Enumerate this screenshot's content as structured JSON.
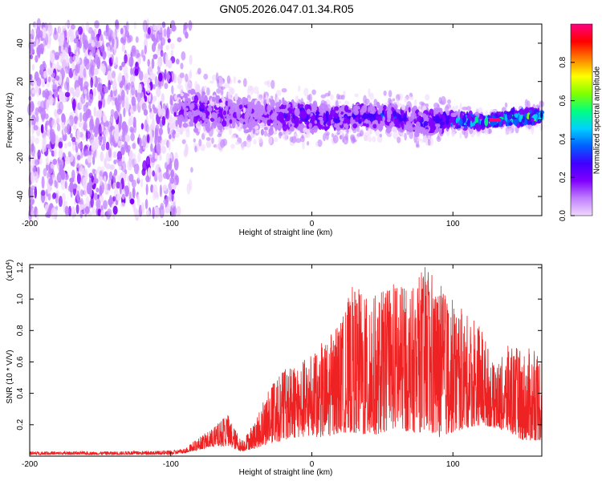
{
  "title": "GN05.2026.047.01.34.R05",
  "chart_data": [
    {
      "type": "heatmap",
      "name": "spectrogram",
      "xlabel": "Height of straight line (km)",
      "ylabel": "Frequency (Hz)",
      "xlim": [
        -200,
        163
      ],
      "ylim": [
        -50,
        50
      ],
      "xticks": [
        -200,
        -100,
        0,
        100
      ],
      "xtick_labels": [
        "-200",
        "-100",
        "0",
        "100"
      ],
      "yticks": [
        -40,
        -20,
        0,
        20,
        40
      ],
      "ytick_labels": [
        "-40",
        "-20",
        "0",
        "20",
        "40"
      ],
      "colorbar": {
        "label": "Normalized spectral amplitude",
        "range": [
          0,
          1
        ],
        "ticks": [
          0.0,
          0.2,
          0.4,
          0.6,
          0.8
        ],
        "tick_labels": [
          "0.0",
          "0.2",
          "0.4",
          "0.6",
          "0.8"
        ],
        "colormap": [
          "#f0d8ff",
          "#c080ff",
          "#8000ff",
          "#4000ff",
          "#0060ff",
          "#00d0ff",
          "#00ff80",
          "#80ff00",
          "#ffff00",
          "#ff8000",
          "#ff0000",
          "#ff0080"
        ]
      },
      "noise_region": {
        "x_range": [
          -200,
          -97
        ],
        "freq_range": [
          -50,
          50
        ],
        "amplitude": 0.12
      },
      "band_segments": [
        {
          "x": -95,
          "center": 5,
          "halfwidth": 10,
          "amplitude": 0.18
        },
        {
          "x": -80,
          "center": 5,
          "halfwidth": 12,
          "amplitude": 0.2
        },
        {
          "x": -60,
          "center": 3,
          "halfwidth": 11,
          "amplitude": 0.18
        },
        {
          "x": -40,
          "center": 2,
          "halfwidth": 10,
          "amplitude": 0.17
        },
        {
          "x": -20,
          "center": 2,
          "halfwidth": 9,
          "amplitude": 0.22
        },
        {
          "x": 0,
          "center": 1,
          "halfwidth": 8,
          "amplitude": 0.25
        },
        {
          "x": 20,
          "center": 1,
          "halfwidth": 7,
          "amplitude": 0.24
        },
        {
          "x": 40,
          "center": 2,
          "halfwidth": 7,
          "amplitude": 0.26
        },
        {
          "x": 60,
          "center": 1,
          "halfwidth": 7,
          "amplitude": 0.25
        },
        {
          "x": 80,
          "center": -2,
          "halfwidth": 8,
          "amplitude": 0.22
        },
        {
          "x": 100,
          "center": 0,
          "halfwidth": 5,
          "amplitude": 0.35
        },
        {
          "x": 120,
          "center": -1,
          "halfwidth": 3,
          "amplitude": 0.5
        },
        {
          "x": 140,
          "center": 1,
          "halfwidth": 4,
          "amplitude": 0.45
        },
        {
          "x": 160,
          "center": 2,
          "halfwidth": 4,
          "amplitude": 0.5
        }
      ],
      "peak": {
        "x": 130,
        "frequency": 0,
        "amplitude": 0.95
      }
    },
    {
      "type": "line",
      "name": "snr",
      "xlabel": "Height of straight line (km)",
      "ylabel": "SNR (10 * V/V)",
      "y_multiplier": "(x10^4)",
      "multiplier_base": "(x10",
      "multiplier_exp": "4",
      "multiplier_close": ")",
      "xlim": [
        -200,
        163
      ],
      "ylim": [
        0,
        1.22
      ],
      "xticks": [
        -200,
        -100,
        0,
        100
      ],
      "xtick_labels": [
        "-200",
        "-100",
        "0",
        "100"
      ],
      "yticks": [
        0.2,
        0.4,
        0.6,
        0.8,
        1.0,
        1.2
      ],
      "ytick_labels": [
        "0.2",
        "0.4",
        "0.6",
        "0.8",
        "1.0",
        "1.2"
      ],
      "color": "#ee2222",
      "envelope": {
        "x": [
          -200,
          -150,
          -100,
          -90,
          -80,
          -70,
          -60,
          -50,
          -40,
          -30,
          -20,
          -10,
          0,
          10,
          20,
          30,
          40,
          50,
          60,
          70,
          80,
          90,
          100,
          110,
          120,
          130,
          140,
          150,
          163
        ],
        "max": [
          0.03,
          0.03,
          0.035,
          0.05,
          0.12,
          0.18,
          0.27,
          0.1,
          0.22,
          0.45,
          0.55,
          0.6,
          0.65,
          0.75,
          0.85,
          1.12,
          1.0,
          1.05,
          1.12,
          1.05,
          1.22,
          1.1,
          1.0,
          0.9,
          0.85,
          0.55,
          0.72,
          0.68,
          0.7
        ],
        "min": [
          0.01,
          0.01,
          0.01,
          0.02,
          0.04,
          0.06,
          0.06,
          0.03,
          0.05,
          0.08,
          0.1,
          0.12,
          0.12,
          0.12,
          0.15,
          0.15,
          0.12,
          0.15,
          0.18,
          0.15,
          0.15,
          0.12,
          0.15,
          0.18,
          0.2,
          0.18,
          0.15,
          0.1,
          0.1
        ]
      }
    }
  ]
}
